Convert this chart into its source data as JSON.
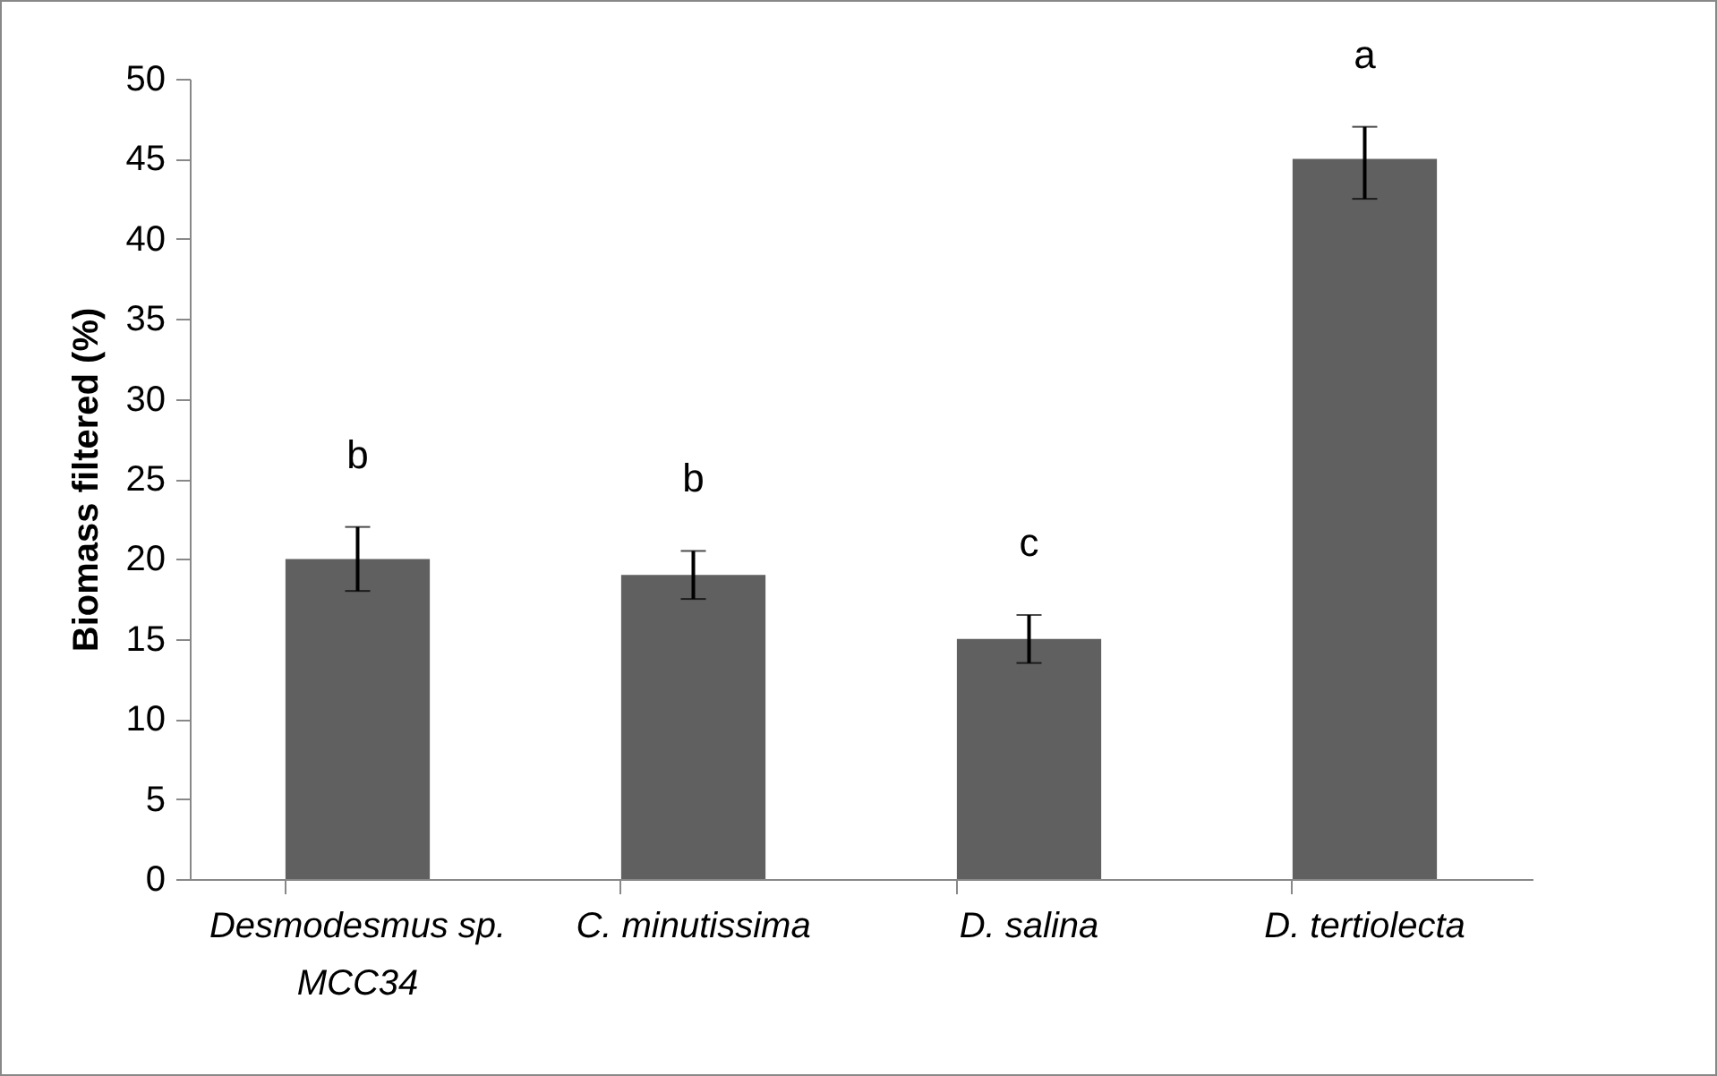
{
  "chart_data": {
    "type": "bar",
    "ylabel": "Biomass filtered (%)",
    "categories": [
      "Desmodesmus sp. MCC34",
      "C. minutissima",
      "D. salina",
      "D. tertiolecta"
    ],
    "values": [
      20,
      19,
      15,
      45
    ],
    "color": "#606060",
    "errors": [
      2,
      1.5,
      1.5,
      [
        42.5,
        47
      ]
    ],
    "ylim": [
      0,
      50
    ],
    "yticks": [
      0,
      5,
      10,
      15,
      20,
      25,
      30,
      35,
      40,
      45,
      50
    ],
    "grid": false,
    "annotations": [
      "b",
      "b",
      "c",
      "a"
    ]
  }
}
